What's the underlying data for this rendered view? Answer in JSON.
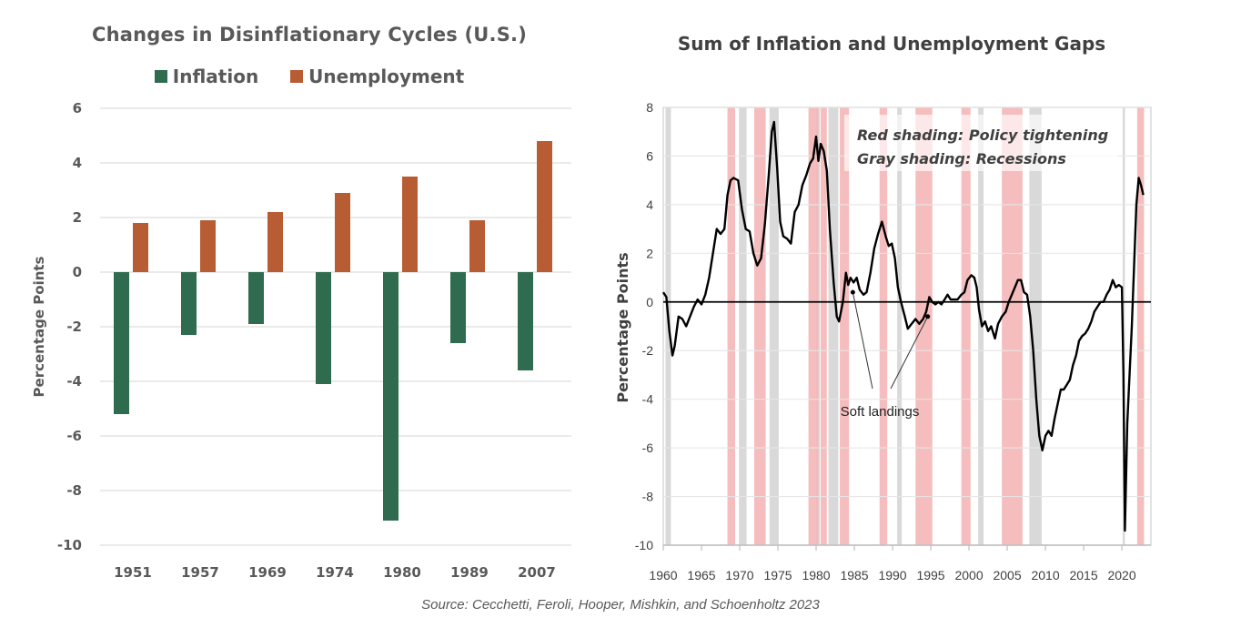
{
  "source": "Source: Cecchetti, Feroli, Hooper, Mishkin, and Schoenholtz 2023",
  "colors": {
    "inflation": "#2e6b4f",
    "unemployment": "#b85c33",
    "policy_shading": "#f4b6b6",
    "recession_shading": "#d9d9d9",
    "gridline": "#e3e3e3",
    "line": "#000000"
  },
  "chart_data": [
    {
      "type": "bar",
      "title": "Changes in Disinflationary  Cycles (U.S.)",
      "xlabel": "",
      "ylabel": "Percentage Points",
      "ylim": [
        -10,
        6
      ],
      "yticks": [
        6,
        4,
        2,
        0,
        -2,
        -4,
        -6,
        -8,
        -10
      ],
      "ytick_labels": [
        "6",
        "4",
        "2",
        "0",
        "-2",
        "-4",
        "-6",
        "-8",
        "-10"
      ],
      "grid": true,
      "legend_position": "top-center",
      "categories": [
        "1951",
        "1957",
        "1969",
        "1974",
        "1980",
        "1989",
        "2007"
      ],
      "series": [
        {
          "name": "Inflation",
          "color": "#2e6b4f",
          "values": [
            -5.2,
            -2.3,
            -1.9,
            -4.1,
            -9.1,
            -2.6,
            -3.6
          ]
        },
        {
          "name": "Unemployment",
          "color": "#b85c33",
          "values": [
            1.8,
            1.9,
            2.2,
            2.9,
            3.5,
            1.9,
            4.8
          ]
        }
      ]
    },
    {
      "type": "line",
      "title": "Sum of Inflation and Unemployment Gaps",
      "xlabel": "",
      "ylabel": "Percentage Points",
      "xlim": [
        1960,
        2023.8
      ],
      "ylim": [
        -10,
        8
      ],
      "xticks": [
        1960,
        1965,
        1970,
        1975,
        1980,
        1985,
        1990,
        1995,
        2000,
        2005,
        2010,
        2015,
        2020
      ],
      "xtick_labels": [
        "1960",
        "1965",
        "1970",
        "1975",
        "1980",
        "1985",
        "1990",
        "1995",
        "2000",
        "2005",
        "2010",
        "2015",
        "2020"
      ],
      "yticks": [
        8,
        6,
        4,
        2,
        0,
        -2,
        -4,
        -6,
        -8,
        -10
      ],
      "ytick_labels": [
        "8",
        "6",
        "4",
        "2",
        "0",
        "-2",
        "-4",
        "-6",
        "-8",
        "-10"
      ],
      "grid": true,
      "notes": [
        "Red shading:  Policy tightening",
        "Gray shading:  Recessions"
      ],
      "annotation": {
        "text": "Soft landings",
        "points": [
          [
            1984.8,
            0.4
          ],
          [
            1994.6,
            -0.6
          ]
        ]
      },
      "policy_tightening_periods": [
        [
          1968.4,
          1969.4
        ],
        [
          1971.9,
          1973.4
        ],
        [
          1979.0,
          1980.3
        ],
        [
          1980.6,
          1981.4
        ],
        [
          1983.1,
          1984.3
        ],
        [
          1988.3,
          1989.3
        ],
        [
          1993.0,
          1995.2
        ],
        [
          1999.0,
          2000.2
        ],
        [
          2004.3,
          2007.0
        ],
        [
          2022.0,
          2022.9
        ]
      ],
      "recession_periods": [
        [
          1960.3,
          1961.0
        ],
        [
          1969.9,
          1970.9
        ],
        [
          1973.9,
          1975.1
        ],
        [
          1980.0,
          1980.5
        ],
        [
          1981.6,
          1982.9
        ],
        [
          1990.6,
          1991.2
        ],
        [
          2001.2,
          2001.9
        ],
        [
          2007.9,
          2009.5
        ],
        [
          2020.1,
          2020.4
        ]
      ],
      "series": [
        {
          "name": "Sum of Inflation and Unemployment Gaps",
          "color": "#000000",
          "points": [
            [
              1960.0,
              0.4
            ],
            [
              1960.4,
              0.2
            ],
            [
              1960.8,
              -1.2
            ],
            [
              1961.2,
              -2.2
            ],
            [
              1961.5,
              -1.8
            ],
            [
              1962.0,
              -0.6
            ],
            [
              1962.5,
              -0.7
            ],
            [
              1963.0,
              -1.0
            ],
            [
              1963.5,
              -0.6
            ],
            [
              1964.0,
              -0.2
            ],
            [
              1964.5,
              0.1
            ],
            [
              1965.0,
              -0.1
            ],
            [
              1965.5,
              0.3
            ],
            [
              1966.0,
              1.0
            ],
            [
              1966.5,
              2.0
            ],
            [
              1967.0,
              3.0
            ],
            [
              1967.5,
              2.8
            ],
            [
              1968.0,
              3.0
            ],
            [
              1968.4,
              4.4
            ],
            [
              1968.8,
              5.0
            ],
            [
              1969.2,
              5.1
            ],
            [
              1969.8,
              5.0
            ],
            [
              1970.3,
              3.8
            ],
            [
              1970.8,
              3.0
            ],
            [
              1971.3,
              2.9
            ],
            [
              1971.8,
              2.0
            ],
            [
              1972.3,
              1.5
            ],
            [
              1972.8,
              1.8
            ],
            [
              1973.3,
              3.2
            ],
            [
              1973.8,
              5.2
            ],
            [
              1974.2,
              7.0
            ],
            [
              1974.5,
              7.4
            ],
            [
              1974.9,
              5.5
            ],
            [
              1975.3,
              3.3
            ],
            [
              1975.7,
              2.7
            ],
            [
              1976.2,
              2.6
            ],
            [
              1976.7,
              2.4
            ],
            [
              1977.2,
              3.7
            ],
            [
              1977.7,
              4.0
            ],
            [
              1978.2,
              4.8
            ],
            [
              1978.7,
              5.2
            ],
            [
              1979.2,
              5.7
            ],
            [
              1979.6,
              5.9
            ],
            [
              1980.0,
              6.8
            ],
            [
              1980.3,
              5.8
            ],
            [
              1980.6,
              6.5
            ],
            [
              1981.0,
              6.2
            ],
            [
              1981.4,
              5.4
            ],
            [
              1981.8,
              3.0
            ],
            [
              1982.3,
              0.8
            ],
            [
              1982.7,
              -0.6
            ],
            [
              1983.0,
              -0.8
            ],
            [
              1983.5,
              0.0
            ],
            [
              1983.9,
              1.2
            ],
            [
              1984.2,
              0.7
            ],
            [
              1984.5,
              1.0
            ],
            [
              1984.9,
              0.8
            ],
            [
              1985.3,
              1.0
            ],
            [
              1985.7,
              0.5
            ],
            [
              1986.2,
              0.3
            ],
            [
              1986.6,
              0.4
            ],
            [
              1987.1,
              1.2
            ],
            [
              1987.6,
              2.2
            ],
            [
              1988.1,
              2.8
            ],
            [
              1988.6,
              3.3
            ],
            [
              1989.1,
              2.7
            ],
            [
              1989.5,
              2.3
            ],
            [
              1989.9,
              2.4
            ],
            [
              1990.3,
              1.8
            ],
            [
              1990.7,
              0.6
            ],
            [
              1991.1,
              0.0
            ],
            [
              1991.6,
              -0.6
            ],
            [
              1992.0,
              -1.1
            ],
            [
              1992.5,
              -0.9
            ],
            [
              1993.0,
              -0.7
            ],
            [
              1993.5,
              -0.9
            ],
            [
              1994.0,
              -0.7
            ],
            [
              1994.4,
              -0.4
            ],
            [
              1994.8,
              0.2
            ],
            [
              1995.2,
              0.0
            ],
            [
              1995.6,
              -0.1
            ],
            [
              1996.0,
              0.0
            ],
            [
              1996.4,
              -0.1
            ],
            [
              1996.8,
              0.1
            ],
            [
              1997.2,
              0.3
            ],
            [
              1997.6,
              0.1
            ],
            [
              1998.0,
              0.1
            ],
            [
              1998.5,
              0.1
            ],
            [
              1999.0,
              0.3
            ],
            [
              1999.4,
              0.4
            ],
            [
              1999.8,
              0.9
            ],
            [
              2000.3,
              1.1
            ],
            [
              2000.7,
              1.0
            ],
            [
              2001.0,
              0.6
            ],
            [
              2001.3,
              -0.3
            ],
            [
              2001.7,
              -1.0
            ],
            [
              2002.1,
              -0.8
            ],
            [
              2002.5,
              -1.2
            ],
            [
              2002.9,
              -1.0
            ],
            [
              2003.4,
              -1.5
            ],
            [
              2003.8,
              -0.9
            ],
            [
              2004.3,
              -0.6
            ],
            [
              2004.8,
              -0.4
            ],
            [
              2005.2,
              0.0
            ],
            [
              2005.6,
              0.3
            ],
            [
              2006.0,
              0.6
            ],
            [
              2006.4,
              0.9
            ],
            [
              2006.8,
              0.9
            ],
            [
              2007.2,
              0.4
            ],
            [
              2007.6,
              0.3
            ],
            [
              2008.0,
              -0.6
            ],
            [
              2008.4,
              -2.0
            ],
            [
              2008.8,
              -4.0
            ],
            [
              2009.2,
              -5.5
            ],
            [
              2009.6,
              -6.1
            ],
            [
              2010.0,
              -5.5
            ],
            [
              2010.4,
              -5.3
            ],
            [
              2010.8,
              -5.5
            ],
            [
              2011.2,
              -4.8
            ],
            [
              2011.6,
              -4.2
            ],
            [
              2012.0,
              -3.6
            ],
            [
              2012.4,
              -3.6
            ],
            [
              2012.8,
              -3.4
            ],
            [
              2013.2,
              -3.2
            ],
            [
              2013.6,
              -2.6
            ],
            [
              2014.0,
              -2.2
            ],
            [
              2014.4,
              -1.6
            ],
            [
              2014.8,
              -1.4
            ],
            [
              2015.2,
              -1.3
            ],
            [
              2015.6,
              -1.1
            ],
            [
              2016.0,
              -0.8
            ],
            [
              2016.4,
              -0.4
            ],
            [
              2016.8,
              -0.2
            ],
            [
              2017.2,
              0.0
            ],
            [
              2017.6,
              0.0
            ],
            [
              2018.0,
              0.3
            ],
            [
              2018.4,
              0.5
            ],
            [
              2018.8,
              0.9
            ],
            [
              2019.2,
              0.6
            ],
            [
              2019.6,
              0.7
            ],
            [
              2020.0,
              0.6
            ],
            [
              2020.2,
              -3.0
            ],
            [
              2020.4,
              -9.4
            ],
            [
              2020.7,
              -5.0
            ],
            [
              2021.0,
              -3.0
            ],
            [
              2021.3,
              -1.0
            ],
            [
              2021.6,
              1.5
            ],
            [
              2021.9,
              4.0
            ],
            [
              2022.2,
              5.1
            ],
            [
              2022.5,
              4.8
            ],
            [
              2022.8,
              4.4
            ]
          ]
        }
      ],
      "zero_line": true
    }
  ]
}
